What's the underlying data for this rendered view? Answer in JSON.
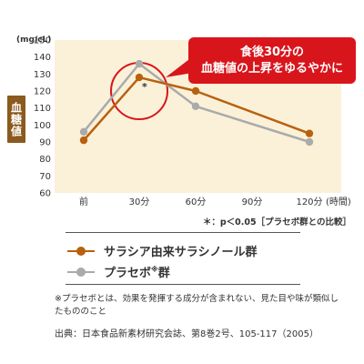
{
  "chart_data": {
    "type": "line",
    "unit": "(mg/cL)",
    "ylabel": "血糖値",
    "categories": [
      "前",
      "30分",
      "60分",
      "90分",
      "120分"
    ],
    "x_axis_suffix": "(時間)",
    "ylim": [
      60,
      150
    ],
    "yticks": [
      60,
      70,
      80,
      90,
      100,
      110,
      120,
      130,
      140,
      150
    ],
    "grid": false,
    "background": "#fbf1d9",
    "series": [
      {
        "name": "サラシア由来サラシノール群",
        "color": "#b8610f",
        "points": [
          {
            "x": "前",
            "y": 91
          },
          {
            "x": "30分",
            "y": 128
          },
          {
            "x": "60分",
            "y": 120
          },
          {
            "x": "120分",
            "y": 95
          }
        ]
      },
      {
        "name": "プラセボ",
        "name_sup": "※",
        "name_suffix": "群",
        "color": "#aaaaaa",
        "points": [
          {
            "x": "前",
            "y": 96
          },
          {
            "x": "30分",
            "y": 136
          },
          {
            "x": "60分",
            "y": 111
          },
          {
            "x": "120分",
            "y": 90
          }
        ]
      }
    ],
    "significance_marker": "*",
    "significance_at": "30分",
    "callout": {
      "line1": "食後30分の",
      "line2": "血糖値の上昇をゆるやかに",
      "color": "#d9151c"
    },
    "note": "＊：p＜0.05［プラセボ群との比較］",
    "legend_position": "below"
  },
  "footnote": "※プラセボとは、効果を発揮する成分が含まれない、見た目や味が類似したもののこと",
  "source": "出典：日本食品新素材研究会誌、第8巻2号、105-117（2005）"
}
